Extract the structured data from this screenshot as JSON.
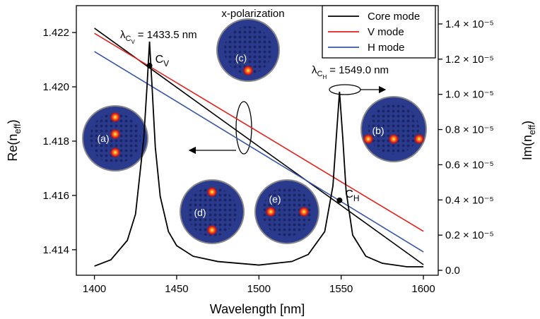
{
  "chart_data": {
    "type": "line",
    "annotation": "x-polarization",
    "xlabel": "Wavelength [nm]",
    "ylabel": {
      "text": "Re(n",
      "sub": "eff",
      "end": ")"
    },
    "y2label": {
      "text": "Im(n",
      "sub": "eff",
      "end": ")"
    },
    "xlim": [
      1389,
      1609
    ],
    "ylim": [
      1.41306,
      1.42299
    ],
    "y2lim": [
      -2.8e-07,
      1.504e-05
    ],
    "xticks": [
      1400,
      1450,
      1500,
      1550,
      1600
    ],
    "yticks": [
      1.414,
      1.416,
      1.418,
      {
        "value": 1.42,
        "label": "1.420"
      },
      1.422
    ],
    "y2ticks": [
      {
        "value": 0,
        "label": "0.0"
      },
      {
        "value": 2e-06,
        "label": "0.2 × 10⁻⁵"
      },
      {
        "value": 4e-06,
        "label": "0.4 × 10⁻⁵"
      },
      {
        "value": 6e-06,
        "label": "0.6 × 10⁻⁵"
      },
      {
        "value": 8e-06,
        "label": "0.8 × 10⁻⁵"
      },
      {
        "value": 1e-05,
        "label": "1.0 × 10⁻⁵"
      },
      {
        "value": 1.2e-05,
        "label": "1.2 × 10⁻⁵"
      },
      {
        "value": 1.4e-05,
        "label": "1.4 × 10⁻⁵"
      }
    ],
    "legend": "upper right",
    "series": [
      {
        "name": "Core mode",
        "color": "#000000",
        "x": [
          1400,
          1450,
          1500,
          1550,
          1600
        ],
        "values": [
          1.42216,
          1.41998,
          1.4178,
          1.41563,
          1.41345
        ]
      },
      {
        "name": "V mode",
        "color": "#e3201b",
        "x": [
          1400,
          1450,
          1500,
          1550,
          1600
        ],
        "values": [
          1.42197,
          1.42015,
          1.41833,
          1.4165,
          1.41468
        ]
      },
      {
        "name": "H mode",
        "color": "#3a55a4",
        "x": [
          1400,
          1450,
          1500,
          1550,
          1600
        ],
        "values": [
          1.4213,
          1.41946,
          1.41761,
          1.41577,
          1.41392
        ]
      },
      {
        "color": "#000000",
        "axis": "y2",
        "x": [
          1400,
          1410,
          1420,
          1425,
          1430,
          1432,
          1433.5,
          1435,
          1437,
          1440,
          1445,
          1450,
          1460,
          1475,
          1500,
          1520,
          1530,
          1540,
          1545,
          1547,
          1549,
          1551,
          1553,
          1557,
          1565,
          1575,
          1590,
          1600
        ],
        "values": [
          2.4e-07,
          6e-07,
          1.7e-06,
          3.2e-06,
          7.5e-06,
          1.05e-05,
          1.3e-05,
          1.05e-05,
          7e-06,
          4.2e-06,
          2.2e-06,
          1.4e-06,
          8e-07,
          5e-07,
          3e-07,
          5e-07,
          9e-07,
          2.2e-06,
          4.8e-06,
          7.5e-06,
          1.015e-05,
          7.5e-06,
          4.5e-06,
          2e-06,
          8e-07,
          4e-07,
          2e-07,
          2e-07
        ]
      }
    ],
    "points": [
      {
        "label": "C",
        "sub": "V",
        "x": 1433.5,
        "y": 1.42078
      },
      {
        "label": "C",
        "sub": "H",
        "x": 1549,
        "y": 1.41582
      }
    ],
    "resonances": [
      {
        "symbol": "λ",
        "sub": "C",
        "subsub": "V",
        "text": "= 1433.5 nm"
      },
      {
        "symbol": "λ",
        "sub": "C",
        "subsub": "H",
        "text": "= 1549.0 nm"
      }
    ],
    "insets": [
      "(a)",
      "(b)",
      "(c)",
      "(d)",
      "(e)"
    ]
  }
}
